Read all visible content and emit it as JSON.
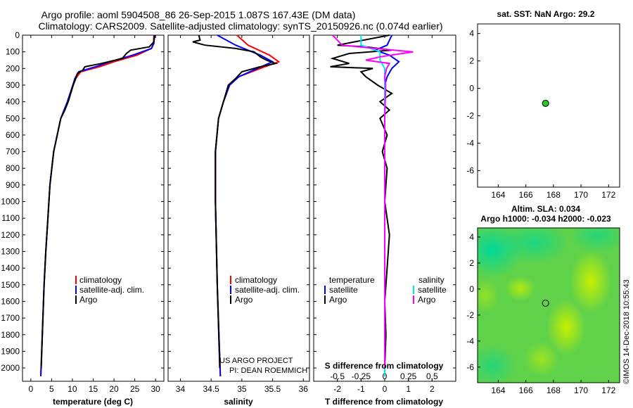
{
  "header": {
    "title_line1": "Argo profile: aoml 5904508_86 26-Sep-2015 1.087S 167.43E (DM data)",
    "title_line2": "Climatology: CARS2009. Satellite-adjusted climatology: synTS_20150926.nc (0.074d earlier)"
  },
  "colors": {
    "climatology": "#ff0000",
    "satellite": "#0000ff",
    "argo": "#000000",
    "sal_satellite": "#00e5ee",
    "sal_argo": "#ff00ff",
    "point": "#22cc22"
  },
  "chart_data": [
    {
      "id": "temperature",
      "type": "line",
      "xlabel": "temperature (deg C)",
      "ylabel": "",
      "xlim": [
        -2,
        32
      ],
      "ylim": [
        2080,
        0
      ],
      "xticks": [
        0,
        5,
        10,
        15,
        20,
        25,
        30
      ],
      "yticks": [
        0,
        100,
        200,
        300,
        400,
        500,
        600,
        700,
        800,
        900,
        1000,
        1100,
        1200,
        1300,
        1400,
        1500,
        1600,
        1700,
        1800,
        1900,
        2000
      ],
      "legend": [
        "climatology",
        "satellite-adj. clim.",
        "Argo"
      ],
      "series": [
        {
          "name": "climatology",
          "depth": [
            0,
            50,
            80,
            120,
            160,
            190,
            220,
            260,
            300,
            400,
            500,
            700,
            900,
            1100,
            1300,
            1500,
            1700,
            2050
          ],
          "values": [
            29.6,
            29.5,
            29.0,
            25.5,
            20.0,
            16.5,
            12.0,
            10.8,
            10.2,
            8.8,
            7.2,
            5.5,
            4.6,
            4.1,
            3.6,
            3.2,
            2.9,
            2.4
          ]
        },
        {
          "name": "satellite-adj. clim.",
          "depth": [
            0,
            50,
            80,
            120,
            160,
            190,
            220,
            260,
            300,
            400,
            500,
            700,
            900,
            1100,
            1300,
            1500,
            1700,
            2050
          ],
          "values": [
            29.7,
            29.6,
            29.0,
            24.5,
            19.0,
            15.5,
            11.5,
            10.6,
            10.1,
            8.8,
            7.2,
            5.5,
            4.6,
            4.1,
            3.6,
            3.2,
            2.9,
            2.4
          ]
        },
        {
          "name": "Argo",
          "depth": [
            0,
            40,
            70,
            90,
            110,
            140,
            170,
            190,
            210,
            230,
            260,
            300,
            400,
            450,
            500,
            700,
            900,
            1100,
            1300,
            1500,
            1700,
            2000
          ],
          "values": [
            29.8,
            29.6,
            28.5,
            24.0,
            23.0,
            22.0,
            17.0,
            13.0,
            12.5,
            11.2,
            10.8,
            10.2,
            9.0,
            8.2,
            7.2,
            5.5,
            4.6,
            4.1,
            3.6,
            3.2,
            2.9,
            2.5
          ]
        }
      ]
    },
    {
      "id": "salinity",
      "type": "line",
      "xlabel": "salinity",
      "ylabel": "",
      "xlim": [
        33.8,
        36.1
      ],
      "ylim": [
        2080,
        0
      ],
      "xticks": [
        34,
        34.5,
        35,
        35.5,
        36
      ],
      "legend": [
        "climatology",
        "satellite-adj. clim.",
        "Argo"
      ],
      "series": [
        {
          "name": "climatology",
          "depth": [
            0,
            60,
            120,
            160,
            200,
            250,
            300,
            400,
            500,
            700,
            1000,
            1500,
            2050
          ],
          "values": [
            34.92,
            35.1,
            35.45,
            35.6,
            35.3,
            34.95,
            34.8,
            34.7,
            34.62,
            34.57,
            34.57,
            34.6,
            34.65
          ]
        },
        {
          "name": "satellite-adj. clim.",
          "depth": [
            0,
            60,
            120,
            160,
            200,
            250,
            300,
            400,
            500,
            700,
            1000,
            1500,
            2050
          ],
          "values": [
            34.6,
            34.9,
            35.3,
            35.5,
            35.25,
            34.95,
            34.8,
            34.7,
            34.62,
            34.57,
            34.57,
            34.6,
            34.65
          ]
        },
        {
          "name": "Argo",
          "depth": [
            0,
            30,
            40,
            60,
            80,
            100,
            130,
            150,
            170,
            190,
            220,
            260,
            300,
            400,
            500,
            700,
            1000,
            1500,
            2000
          ],
          "values": [
            34.3,
            34.32,
            34.2,
            34.4,
            34.9,
            35.2,
            35.3,
            35.4,
            35.55,
            35.3,
            35.0,
            34.9,
            34.78,
            34.7,
            34.62,
            34.57,
            34.57,
            34.6,
            34.64
          ]
        }
      ],
      "annotations": [
        "US ARGO PROJECT",
        "PI: DEAN ROEMMICH"
      ]
    },
    {
      "id": "differences",
      "type": "line",
      "xlabel": "T difference from climatology",
      "xlabel_top": "S difference from climatology",
      "xlim": [
        -3,
        3
      ],
      "ylim": [
        2080,
        0
      ],
      "xticks": [
        -2,
        -1,
        0,
        1,
        2
      ],
      "xticks_top": [
        -0.5,
        -0.25,
        0,
        0.25,
        0.5
      ],
      "legend_left_title": "temperature",
      "legend_right_title": "salinity",
      "legend": [
        "satellite",
        "Argo",
        "satellite",
        "Argo"
      ],
      "series": [
        {
          "name": "temperature satellite",
          "depth": [
            0,
            60,
            90,
            120,
            160,
            200,
            250,
            300,
            2050
          ],
          "values": [
            0.3,
            0.1,
            -0.4,
            0.2,
            0.6,
            0.3,
            0.1,
            0.0,
            0.0
          ]
        },
        {
          "name": "temperature Argo",
          "depth": [
            0,
            60,
            70,
            90,
            110,
            140,
            170,
            190,
            200,
            220,
            250,
            300,
            350,
            400,
            450,
            500,
            600,
            700,
            800,
            1000,
            1200,
            1400,
            1600,
            1800,
            2000
          ],
          "values": [
            0.2,
            -2.0,
            -0.8,
            0.3,
            -1.5,
            -2.2,
            -1.5,
            -2.3,
            -0.5,
            -1.0,
            -0.8,
            -0.3,
            0.3,
            -0.2,
            0.2,
            -0.2,
            0.1,
            -0.1,
            0.1,
            0.0,
            0.2,
            0.1,
            0.0,
            0.05,
            0.0
          ]
        },
        {
          "name": "salinity satellite",
          "depth": [
            0,
            60,
            100,
            150,
            200,
            250,
            300,
            2050
          ],
          "values": [
            -0.25,
            -0.25,
            -0.05,
            -0.05,
            0.0,
            0.0,
            0.0,
            0.0
          ]
        },
        {
          "name": "salinity Argo",
          "depth": [
            0,
            60,
            80,
            100,
            130,
            150,
            170,
            200,
            250,
            300,
            500,
            1000,
            2000
          ],
          "values": [
            -0.55,
            -0.45,
            -0.1,
            0.3,
            -0.05,
            -0.2,
            0.05,
            0.02,
            0.0,
            0.01,
            0.0,
            0.0,
            0.0
          ]
        }
      ]
    },
    {
      "id": "sst_map",
      "type": "scatter",
      "title": "sat. SST: NaN Argo: 29.2",
      "xlim": [
        162.5,
        172.8
      ],
      "ylim": [
        -7.2,
        4.7
      ],
      "xticks": [
        164,
        166,
        168,
        170,
        172
      ],
      "yticks": [
        -6,
        -4,
        -2,
        0,
        2,
        4
      ],
      "point": {
        "lon": 167.43,
        "lat": -1.087
      }
    },
    {
      "id": "sla_map",
      "type": "heatmap",
      "title": "Altim. SLA: 0.034",
      "subtitle": "Argo h1000: -0.034 h2000: -0.023",
      "xlim": [
        162.5,
        172.8
      ],
      "ylim": [
        -7.2,
        4.7
      ],
      "xticks": [
        164,
        166,
        168,
        170,
        172
      ],
      "yticks": [
        -6,
        -4,
        -2,
        0,
        2,
        4
      ],
      "point": {
        "lon": 167.43,
        "lat": -1.087
      }
    }
  ],
  "side_text": "©IMOS 14-Dec-2018 10:55:43"
}
